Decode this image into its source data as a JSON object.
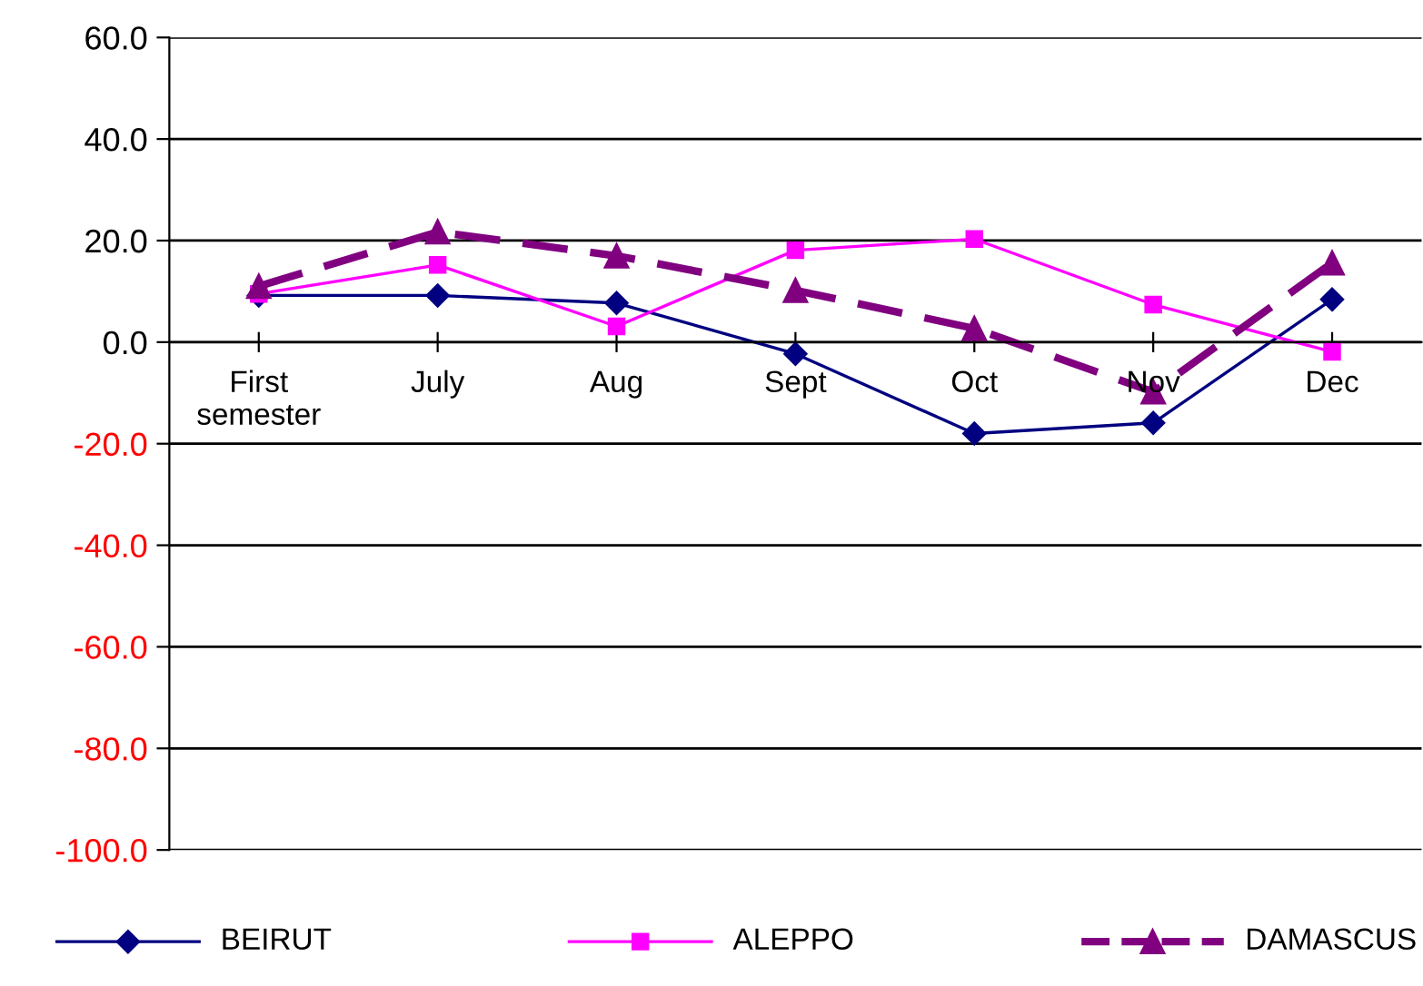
{
  "chart_data": {
    "type": "line",
    "categories": [
      "First\nsemester",
      "July",
      "Aug",
      "Sept",
      "Oct",
      "Nov",
      "Dec"
    ],
    "series": [
      {
        "name": "BEIRUT",
        "color": "#000080",
        "values": [
          9.2,
          9.2,
          7.7,
          -2.3,
          -18,
          -15.9,
          8.4
        ],
        "marker": "diamond",
        "line_style": "solid"
      },
      {
        "name": "ALEPPO",
        "color": "#ff00ff",
        "values": [
          9.5,
          15.2,
          3.1,
          18.1,
          20.3,
          7.4,
          -1.9
        ],
        "marker": "square",
        "line_style": "solid"
      },
      {
        "name": "DAMASCUS",
        "color": "#800080",
        "values": [
          11,
          21.7,
          17,
          10.2,
          2.7,
          -9.8,
          15.6
        ],
        "marker": "triangle",
        "line_style": "dashed"
      }
    ],
    "ylim": [
      -100,
      60
    ],
    "yticks": [
      {
        "value": -100,
        "label": "-100.0"
      },
      {
        "value": -80,
        "label": "-80.0"
      },
      {
        "value": -60,
        "label": "-60.0"
      },
      {
        "value": -40,
        "label": "-40.0"
      },
      {
        "value": -20,
        "label": "-20.0"
      },
      {
        "value": 0,
        "label": "0.0"
      },
      {
        "value": 20,
        "label": "20.0"
      },
      {
        "value": 40,
        "label": "40.0"
      },
      {
        "value": 60,
        "label": "60.0"
      }
    ],
    "grid": "y",
    "legend": "bottom"
  }
}
